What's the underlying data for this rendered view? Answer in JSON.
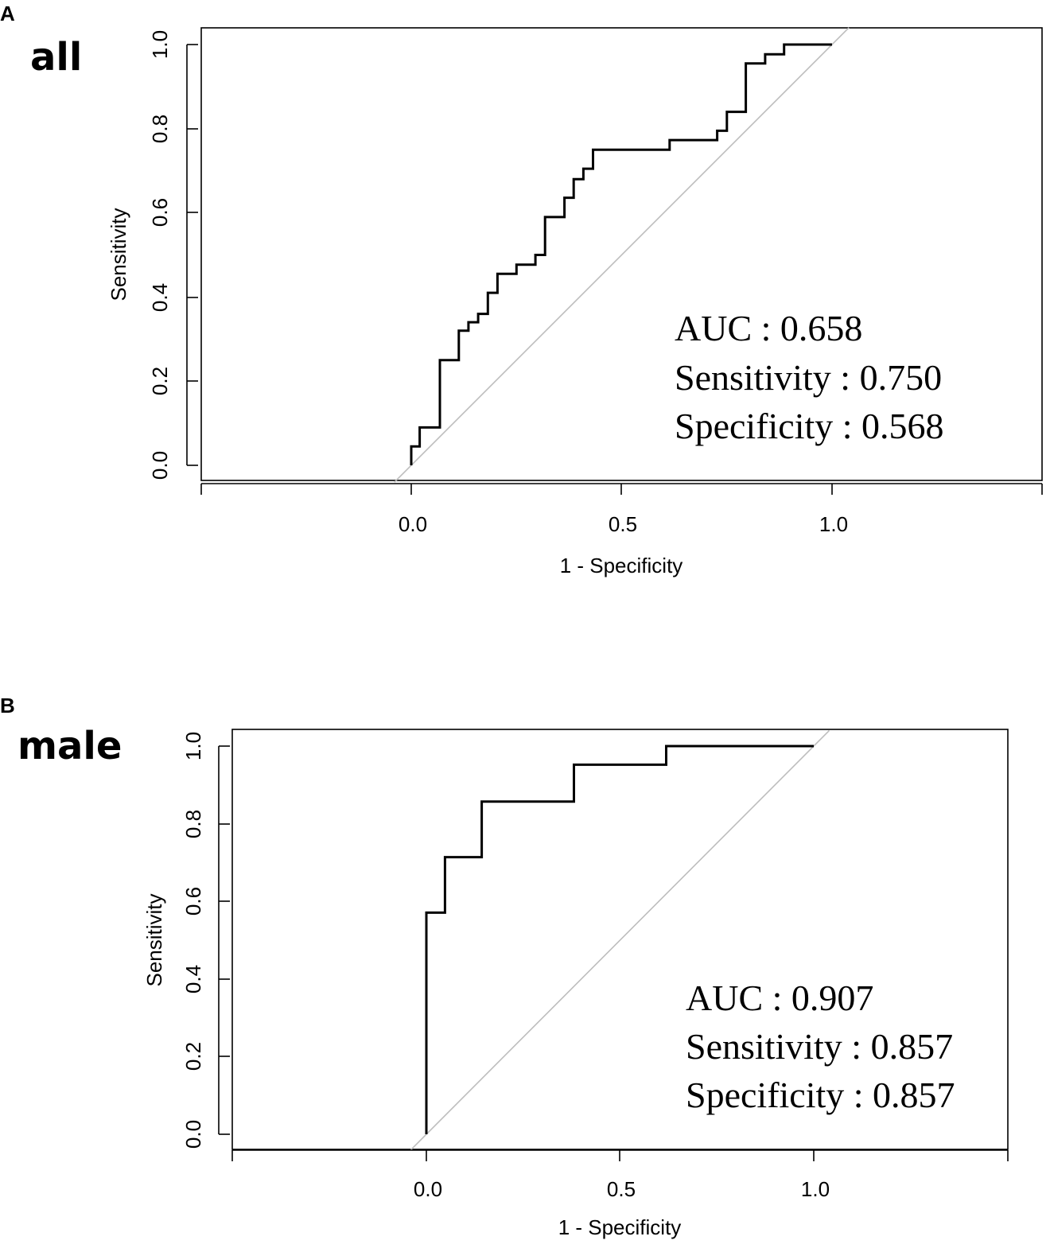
{
  "chart_data": [
    {
      "type": "line",
      "panel_letter": "A",
      "panel_title": "all",
      "xlabel": "1 - Specificity",
      "ylabel": "Sensitivity",
      "x_ticks": [
        "0.0",
        "0.5",
        "1.0"
      ],
      "y_ticks": [
        "0.0",
        "0.2",
        "0.4",
        "0.6",
        "0.8",
        "1.0"
      ],
      "xlim": [
        -0.5,
        1.5
      ],
      "ylim": [
        -0.04,
        1.04
      ],
      "diagonal": [
        [
          -0.04,
          -0.04
        ],
        [
          1.04,
          1.04
        ]
      ],
      "roc_points": [
        [
          0.0,
          0.0
        ],
        [
          0.0,
          0.045
        ],
        [
          0.02,
          0.045
        ],
        [
          0.02,
          0.09
        ],
        [
          0.068,
          0.09
        ],
        [
          0.068,
          0.25
        ],
        [
          0.113,
          0.25
        ],
        [
          0.113,
          0.32
        ],
        [
          0.136,
          0.32
        ],
        [
          0.136,
          0.34
        ],
        [
          0.159,
          0.34
        ],
        [
          0.159,
          0.36
        ],
        [
          0.182,
          0.36
        ],
        [
          0.182,
          0.41
        ],
        [
          0.205,
          0.41
        ],
        [
          0.205,
          0.455
        ],
        [
          0.25,
          0.455
        ],
        [
          0.25,
          0.477
        ],
        [
          0.295,
          0.477
        ],
        [
          0.295,
          0.5
        ],
        [
          0.318,
          0.5
        ],
        [
          0.318,
          0.59
        ],
        [
          0.364,
          0.59
        ],
        [
          0.364,
          0.636
        ],
        [
          0.386,
          0.636
        ],
        [
          0.386,
          0.68
        ],
        [
          0.409,
          0.68
        ],
        [
          0.409,
          0.705
        ],
        [
          0.432,
          0.705
        ],
        [
          0.432,
          0.75
        ],
        [
          0.614,
          0.75
        ],
        [
          0.614,
          0.773
        ],
        [
          0.727,
          0.773
        ],
        [
          0.727,
          0.795
        ],
        [
          0.75,
          0.795
        ],
        [
          0.75,
          0.84
        ],
        [
          0.795,
          0.84
        ],
        [
          0.795,
          0.955
        ],
        [
          0.841,
          0.955
        ],
        [
          0.841,
          0.977
        ],
        [
          0.886,
          0.977
        ],
        [
          0.886,
          1.0
        ],
        [
          1.0,
          1.0
        ]
      ],
      "annotations": [
        "AUC : 0.658",
        "Sensitivity : 0.750",
        "Specificity : 0.568"
      ]
    },
    {
      "type": "line",
      "panel_letter": "B",
      "panel_title": "male",
      "xlabel": "1 - Specificity",
      "ylabel": "Sensitivity",
      "x_ticks": [
        "0.0",
        "0.5",
        "1.0"
      ],
      "y_ticks": [
        "0.0",
        "0.2",
        "0.4",
        "0.6",
        "0.8",
        "1.0"
      ],
      "xlim": [
        -0.5,
        1.5
      ],
      "ylim": [
        -0.04,
        1.04
      ],
      "diagonal": [
        [
          -0.04,
          -0.04
        ],
        [
          1.04,
          1.04
        ]
      ],
      "roc_points": [
        [
          0.0,
          0.0
        ],
        [
          0.0,
          0.571
        ],
        [
          0.048,
          0.571
        ],
        [
          0.048,
          0.714
        ],
        [
          0.143,
          0.714
        ],
        [
          0.143,
          0.857
        ],
        [
          0.381,
          0.857
        ],
        [
          0.381,
          0.952
        ],
        [
          0.619,
          0.952
        ],
        [
          0.619,
          1.0
        ],
        [
          1.0,
          1.0
        ]
      ],
      "annotations": [
        "AUC : 0.907",
        "Sensitivity : 0.857",
        "Specificity : 0.857"
      ]
    }
  ]
}
